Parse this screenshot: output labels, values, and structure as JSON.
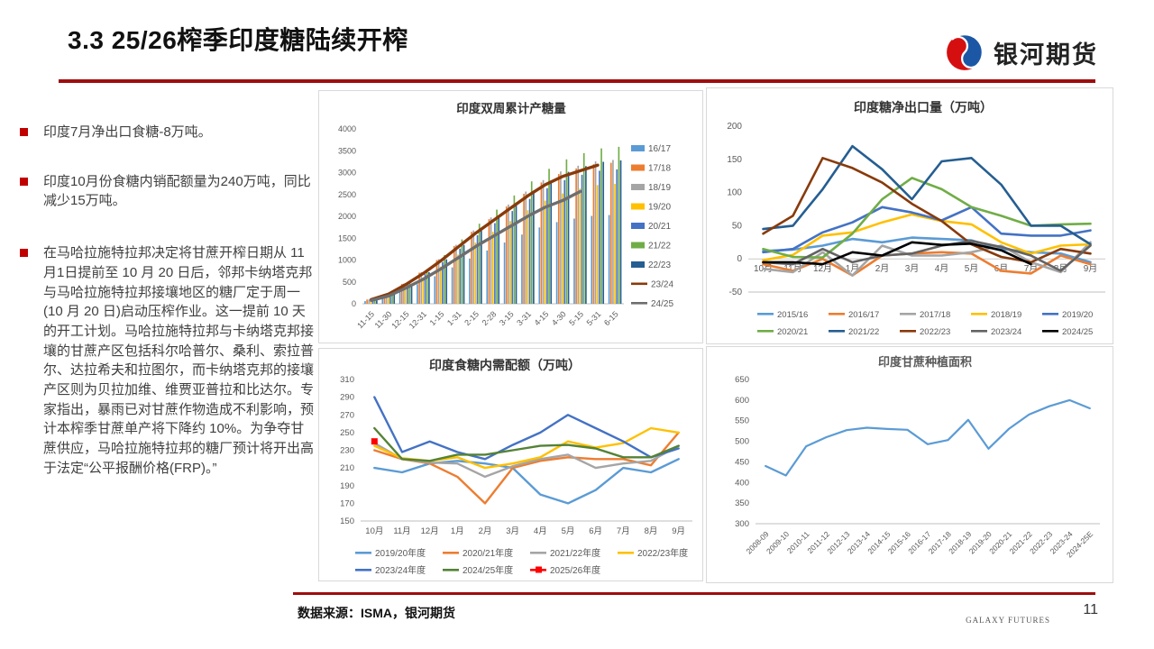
{
  "page": {
    "title": "3.3 25/26榨季印度糖陆续开榨",
    "logo_text": "银河期货",
    "footer_source": "数据来源：ISMA，银河期货",
    "footer_brand": "GALAXY FUTURES",
    "page_number": "11",
    "accent_red": "#9e0d0d",
    "bullet_marker_color": "#c00000",
    "logo_blue": "#1c57a5",
    "logo_red": "#d50f10"
  },
  "bullets": [
    {
      "text": "印度7月净出口食糖-8万吨。"
    },
    {
      "text": "印度10月份食糖内销配额量为240万吨，同比减少15万吨。"
    },
    {
      "text": "在马哈拉施特拉邦决定将甘蔗开榨日期从 11月1日提前至 10 月 20 日后，邻邦卡纳塔克邦与马哈拉施特拉邦接壤地区的糖厂定于周一(10 月 20 日)启动压榨作业。这一提前 10 天的开工计划。马哈拉施特拉邦与卡纳塔克邦接壤的甘蔗产区包括科尔哈普尔、桑利、索拉普尔、达拉希夫和拉图尔，而卡纳塔克邦的接壤产区则为贝拉加维、维贾亚普拉和比达尔。专家指出，暴雨已对甘蔗作物造成不利影响，预计本榨季甘蔗单产将下降约 10%。为争夺甘蔗供应，马哈拉施特拉邦的糖厂预计将开出高于法定“公平报酬价格(FRP)。”"
    }
  ],
  "chart_data": [
    {
      "type": "bar",
      "title": "印度双周累计产糖量",
      "categories": [
        "11-15",
        "11-30",
        "12-15",
        "12-31",
        "1-15",
        "1-31",
        "2-15",
        "2-28",
        "3-15",
        "3-31",
        "4-15",
        "4-30",
        "5-15",
        "5-31",
        "6-15"
      ],
      "ylim": [
        0,
        4000
      ],
      "ystep": 500,
      "legend_position": "right",
      "series": [
        {
          "name": "16/17",
          "kind": "bar",
          "color": "#5B9BD5",
          "values": [
            61,
            142,
            284,
            447,
            629,
            832,
            1035,
            1218,
            1401,
            1583,
            1746,
            1868,
            1949,
            2010,
            2030
          ]
        },
        {
          "name": "17/18",
          "kind": "bar",
          "color": "#ED7D31",
          "values": [
            97,
            226,
            452,
            710,
            1000,
            1322,
            1645,
            1935,
            2225,
            2516,
            2774,
            2967,
            3096,
            3193,
            3225
          ]
        },
        {
          "name": "18/19",
          "kind": "bar",
          "color": "#A5A5A5",
          "values": [
            99,
            230,
            461,
            724,
            1020,
            1349,
            1678,
            1974,
            2270,
            2566,
            2829,
            3027,
            3158,
            3257,
            3290
          ]
        },
        {
          "name": "19/20",
          "kind": "bar",
          "color": "#FFC000",
          "values": [
            82,
            192,
            384,
            603,
            850,
            1124,
            1398,
            1645,
            1892,
            2139,
            2358,
            2523,
            2632,
            2715,
            2742
          ]
        },
        {
          "name": "20/21",
          "kind": "bar",
          "color": "#4472C4",
          "values": [
            92,
            215,
            430,
            676,
            953,
            1260,
            1568,
            1844,
            2121,
            2398,
            2644,
            2828,
            2951,
            3043,
            3074
          ]
        },
        {
          "name": "21/22",
          "kind": "bar",
          "color": "#70AD47",
          "values": [
            108,
            251,
            503,
            790,
            1113,
            1472,
            1831,
            2154,
            2477,
            2800,
            3087,
            3303,
            3446,
            3554,
            3590
          ]
        },
        {
          "name": "22/23",
          "kind": "bar",
          "color": "#255E91",
          "values": [
            98,
            230,
            459,
            722,
            1017,
            1345,
            1673,
            1968,
            2263,
            2558,
            2821,
            3018,
            3149,
            3247,
            3280
          ]
        },
        {
          "name": "23/24",
          "kind": "line",
          "color": "#883A0B",
          "values": [
            95,
            222,
            444,
            697,
            983,
            1300,
            1617,
            1902,
            2187,
            2473,
            2726,
            2916,
            3043,
            3170,
            null
          ]
        },
        {
          "name": "24/25",
          "kind": "line",
          "color": "#6E6E6E",
          "values": [
            77,
            180,
            360,
            565,
            797,
            1054,
            1311,
            1542,
            1773,
            2005,
            2210,
            2364,
            2570,
            null,
            null
          ]
        }
      ]
    },
    {
      "type": "line",
      "title": "印度糖净出口量（万吨）",
      "categories": [
        "10月",
        "11月",
        "12月",
        "1月",
        "2月",
        "3月",
        "4月",
        "5月",
        "6月",
        "7月",
        "8月",
        "9月"
      ],
      "ylim": [
        -50,
        200
      ],
      "ystep": 50,
      "legend_position": "bottom",
      "series": [
        {
          "name": "2015/16",
          "kind": "line",
          "color": "#5B9BD5",
          "values": [
            12,
            14,
            20,
            30,
            25,
            32,
            30,
            28,
            15,
            10,
            8,
            -5
          ]
        },
        {
          "name": "2016/17",
          "kind": "line",
          "color": "#ED7D31",
          "values": [
            -8,
            -18,
            0,
            -25,
            5,
            8,
            10,
            8,
            -18,
            -22,
            5,
            -8
          ]
        },
        {
          "name": "2017/18",
          "kind": "line",
          "color": "#A5A5A5",
          "values": [
            -15,
            -20,
            10,
            -25,
            20,
            5,
            5,
            10,
            20,
            -5,
            -20,
            25
          ]
        },
        {
          "name": "2018/19",
          "kind": "line",
          "color": "#FFC000",
          "values": [
            -2,
            6,
            35,
            40,
            55,
            67,
            57,
            52,
            25,
            8,
            20,
            22
          ]
        },
        {
          "name": "2019/20",
          "kind": "line",
          "color": "#4472C4",
          "values": [
            10,
            15,
            40,
            55,
            78,
            70,
            58,
            78,
            38,
            35,
            35,
            43
          ]
        },
        {
          "name": "2020/21",
          "kind": "line",
          "color": "#70AD47",
          "values": [
            15,
            3,
            2,
            38,
            90,
            122,
            105,
            78,
            65,
            50,
            52,
            53
          ]
        },
        {
          "name": "2021/22",
          "kind": "line",
          "color": "#255E91",
          "values": [
            45,
            50,
            105,
            170,
            135,
            90,
            147,
            152,
            112,
            50,
            50,
            22
          ]
        },
        {
          "name": "2022/23",
          "kind": "line",
          "color": "#883A0B",
          "values": [
            38,
            65,
            152,
            137,
            115,
            83,
            57,
            22,
            3,
            -5,
            15,
            8
          ]
        },
        {
          "name": "2023/24",
          "kind": "line",
          "color": "#636363",
          "values": [
            -5,
            -8,
            15,
            -5,
            5,
            8,
            20,
            27,
            18,
            5,
            -18,
            20
          ]
        },
        {
          "name": "2024/25",
          "kind": "line",
          "color": "#000000",
          "values": [
            -5,
            -5,
            -8,
            10,
            5,
            25,
            21,
            23,
            13,
            -8,
            null,
            null
          ]
        }
      ]
    },
    {
      "type": "line",
      "title": "印度食糖内需配额（万吨）",
      "categories": [
        "10月",
        "11月",
        "12月",
        "1月",
        "2月",
        "3月",
        "4月",
        "5月",
        "6月",
        "7月",
        "8月",
        "9月"
      ],
      "ylim": [
        150,
        310
      ],
      "ystep": 20,
      "legend_position": "bottom",
      "series": [
        {
          "name": "2019/20年度",
          "kind": "line",
          "color": "#5B9BD5",
          "values": [
            210,
            205,
            215,
            218,
            215,
            210,
            180,
            170,
            185,
            210,
            205,
            220
          ]
        },
        {
          "name": "2020/21年度",
          "kind": "line",
          "color": "#ED7D31",
          "values": [
            230,
            220,
            215,
            200,
            170,
            210,
            218,
            222,
            220,
            220,
            213,
            250
          ]
        },
        {
          "name": "2021/22年度",
          "kind": "line",
          "color": "#A5A5A5",
          "values": [
            238,
            220,
            216,
            215,
            200,
            212,
            220,
            225,
            210,
            215,
            218,
            235
          ]
        },
        {
          "name": "2022/23年度",
          "kind": "line",
          "color": "#FFC000",
          "values": [
            235,
            221,
            218,
            222,
            210,
            215,
            222,
            240,
            233,
            238,
            255,
            250
          ]
        },
        {
          "name": "2023/24年度",
          "kind": "line",
          "color": "#4472C4",
          "values": [
            290,
            228,
            240,
            228,
            220,
            236,
            250,
            270,
            255,
            240,
            222,
            232
          ]
        },
        {
          "name": "2024/25年度",
          "kind": "line",
          "color": "#548235",
          "values": [
            255,
            220,
            218,
            225,
            225,
            230,
            235,
            236,
            232,
            222,
            222,
            235
          ]
        },
        {
          "name": "2025/26年度",
          "kind": "line",
          "color": "#FF0000",
          "marker": "square",
          "values": [
            240,
            null,
            null,
            null,
            null,
            null,
            null,
            null,
            null,
            null,
            null,
            null
          ]
        }
      ]
    },
    {
      "type": "line",
      "title": "印度甘蔗种植面积",
      "categories": [
        "2008-09",
        "2009-10",
        "2010-11",
        "2011-12",
        "2012-13",
        "2013-14",
        "2014-15",
        "2015-16",
        "2016-17",
        "2017-18",
        "2018-19",
        "2019-20",
        "2020-21",
        "2021-22",
        "2022-23",
        "2023-24",
        "2024-25E"
      ],
      "ylim": [
        300,
        650
      ],
      "ystep": 50,
      "legend_position": "none",
      "series": [
        {
          "name": "种植面积",
          "kind": "line",
          "color": "#5B9BD5",
          "values": [
            440,
            417,
            488,
            510,
            527,
            533,
            530,
            528,
            493,
            503,
            552,
            482,
            530,
            565,
            585,
            600,
            580
          ]
        }
      ]
    }
  ]
}
